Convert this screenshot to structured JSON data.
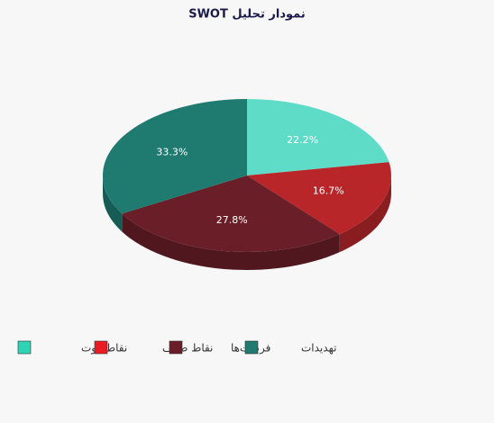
{
  "chart_data": {
    "type": "pie",
    "title": "نمودار تحلیل SWOT",
    "categories": [
      "نقاط قوت",
      "نقاط ضعف",
      "فرصت‌ها",
      "تهدیدات"
    ],
    "values": [
      22.2,
      16.7,
      27.8,
      33.3
    ],
    "value_labels": [
      "22.2%",
      "16.7%",
      "27.8%",
      "33.3%"
    ],
    "colors": [
      "#5fdcc8",
      "#b8262a",
      "#6a1e28",
      "#1f7a70"
    ],
    "legend_colors": [
      "#2ed4b4",
      "#e81c24",
      "#6a1e28",
      "#1f7a70"
    ]
  }
}
